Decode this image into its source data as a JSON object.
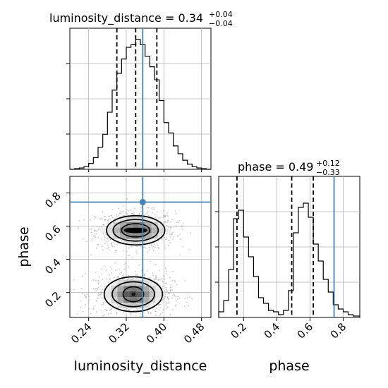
{
  "chart_data": {
    "type": "corner",
    "parameters": [
      "luminosity_distance",
      "phase"
    ],
    "truths": {
      "luminosity_distance": 0.355,
      "phase": 0.745
    },
    "truth_color": "#4682b4",
    "colors": {
      "hist": "#000000",
      "quantile": "#000000",
      "grid": "#b0b0b0",
      "scatter": "#9a9a9a"
    },
    "grid": true,
    "panels": [
      {
        "id": "luminosity_distance-hist",
        "type": "histogram",
        "title": {
          "label": "luminosity_distance = 0.34",
          "plus": "+0.04",
          "minus": "−0.04"
        },
        "xlim": [
          0.2,
          0.5
        ],
        "ylim": [
          0,
          1
        ],
        "quantiles": [
          0.3,
          0.34,
          0.385
        ],
        "bins": [
          0.2,
          0.21,
          0.22,
          0.23,
          0.24,
          0.25,
          0.26,
          0.27,
          0.28,
          0.29,
          0.3,
          0.31,
          0.32,
          0.33,
          0.34,
          0.35,
          0.36,
          0.37,
          0.38,
          0.39,
          0.4,
          0.41,
          0.42,
          0.43,
          0.44,
          0.45,
          0.46,
          0.47,
          0.48,
          0.49,
          0.5
        ],
        "counts": [
          0,
          0.005,
          0.01,
          0.02,
          0.045,
          0.09,
          0.17,
          0.27,
          0.44,
          0.61,
          0.74,
          0.85,
          0.94,
          0.96,
          1.0,
          0.96,
          0.87,
          0.79,
          0.69,
          0.53,
          0.36,
          0.28,
          0.18,
          0.12,
          0.07,
          0.04,
          0.02,
          0.01,
          0.005,
          0
        ]
      },
      {
        "id": "phase-hist",
        "type": "histogram",
        "title": {
          "label": "phase = 0.49",
          "plus": "+0.12",
          "minus": "−0.33"
        },
        "xlim": [
          0.05,
          0.9
        ],
        "ylim": [
          0,
          1
        ],
        "quantiles": [
          0.16,
          0.49,
          0.62
        ],
        "xticks": [
          0.2,
          0.4,
          0.6,
          0.8
        ],
        "xticklabels": [
          "0.2",
          "0.4",
          "0.6",
          "0.8"
        ],
        "xlabel": "phase",
        "bins": [
          0.05,
          0.08,
          0.11,
          0.14,
          0.17,
          0.2,
          0.23,
          0.26,
          0.29,
          0.32,
          0.35,
          0.38,
          0.41,
          0.44,
          0.47,
          0.5,
          0.53,
          0.56,
          0.59,
          0.62,
          0.65,
          0.68,
          0.71,
          0.74,
          0.77,
          0.8,
          0.83,
          0.86,
          0.9
        ],
        "counts": [
          0.04,
          0.12,
          0.34,
          0.7,
          0.76,
          0.57,
          0.43,
          0.29,
          0.14,
          0.1,
          0.05,
          0.04,
          0.02,
          0.05,
          0.19,
          0.6,
          0.78,
          0.81,
          0.71,
          0.52,
          0.4,
          0.27,
          0.18,
          0.09,
          0.06,
          0.04,
          0.02,
          0.01
        ]
      },
      {
        "id": "joint",
        "type": "contour-scatter",
        "xlim": [
          0.2,
          0.5
        ],
        "ylim": [
          0.05,
          0.9
        ],
        "xticks": [
          0.24,
          0.32,
          0.4,
          0.48
        ],
        "xticklabels": [
          "0.24",
          "0.32",
          "0.40",
          "0.48"
        ],
        "yticks": [
          0.2,
          0.4,
          0.6,
          0.8
        ],
        "yticklabels": [
          "0.2",
          "0.4",
          "0.6",
          "0.8"
        ],
        "xlabel": "luminosity_distance",
        "ylabel": "phase",
        "modes": [
          {
            "center": [
              0.34,
              0.575
            ],
            "contour_radii": [
              [
                0.012,
                0.012
              ],
              [
                0.03,
                0.04
              ],
              [
                0.048,
                0.065
              ],
              [
                0.062,
                0.088
              ]
            ]
          },
          {
            "center": [
              0.335,
              0.19
            ],
            "contour_radii": [
              [
                0.002,
                0.002
              ],
              [
                0.022,
                0.045
              ],
              [
                0.045,
                0.075
              ],
              [
                0.062,
                0.105
              ]
            ]
          }
        ]
      }
    ]
  }
}
